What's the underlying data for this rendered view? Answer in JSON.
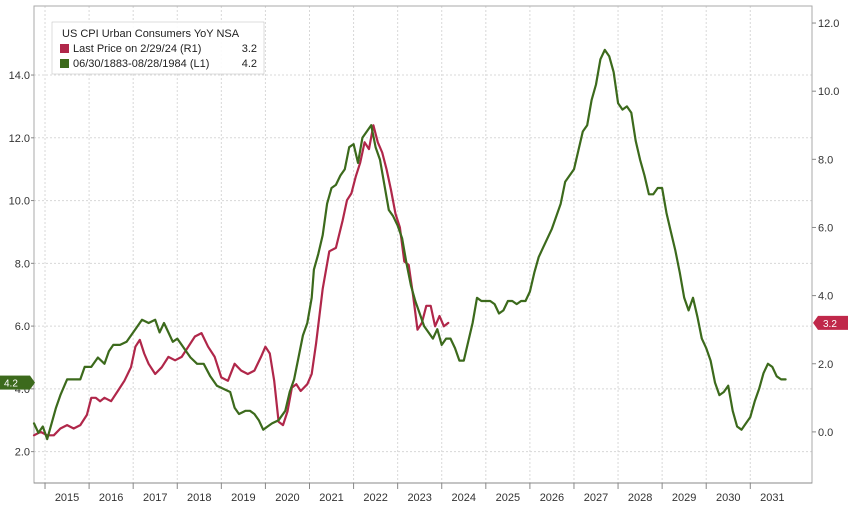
{
  "chart_data": {
    "type": "line",
    "legend": {
      "title": "US CPI Urban Consumers YoY NSA",
      "entries": [
        {
          "label": "Last Price on 2/29/24  (R1)",
          "value": "3.2",
          "color": "#b0274a"
        },
        {
          "label": "06/30/1883-08/28/1984  (L1)",
          "value": "4.2",
          "color": "#3c6a1c"
        }
      ]
    },
    "x_axis": {
      "tick_labels": [
        "2015",
        "2016",
        "2017",
        "2018",
        "2019",
        "2020",
        "2021",
        "2022",
        "2023",
        "2024",
        "2025",
        "2026",
        "2027",
        "2028",
        "2029",
        "2030",
        "2031"
      ],
      "range": [
        2014.75,
        2032.4
      ]
    },
    "y_left": {
      "tick_labels": [
        "2.0",
        "4.0",
        "6.0",
        "8.0",
        "10.0",
        "12.0",
        "14.0"
      ],
      "ylim": [
        1.0,
        16.2
      ]
    },
    "y_right": {
      "tick_labels": [
        "0.0",
        "2.0",
        "4.0",
        "6.0",
        "8.0",
        "10.0",
        "12.0"
      ],
      "ylim": [
        -1.5,
        12.5
      ]
    },
    "badges": {
      "left": {
        "text": "4.2",
        "value": 4.2,
        "axis": "left",
        "color": "#3c6a1c"
      },
      "right": {
        "text": "3.2",
        "value": 3.2,
        "axis": "right",
        "color": "#c0284a"
      }
    },
    "grid": true,
    "series": [
      {
        "axis": "right",
        "color": "#b0274a",
        "points": [
          [
            2014.75,
            -0.1
          ],
          [
            2014.9,
            0.0
          ],
          [
            2015.05,
            -0.1
          ],
          [
            2015.2,
            -0.1
          ],
          [
            2015.35,
            0.1
          ],
          [
            2015.5,
            0.2
          ],
          [
            2015.65,
            0.1
          ],
          [
            2015.8,
            0.2
          ],
          [
            2015.95,
            0.5
          ],
          [
            2016.05,
            1.0
          ],
          [
            2016.15,
            1.0
          ],
          [
            2016.25,
            0.9
          ],
          [
            2016.35,
            1.0
          ],
          [
            2016.5,
            0.9
          ],
          [
            2016.65,
            1.2
          ],
          [
            2016.8,
            1.5
          ],
          [
            2016.95,
            1.9
          ],
          [
            2017.05,
            2.5
          ],
          [
            2017.15,
            2.7
          ],
          [
            2017.25,
            2.3
          ],
          [
            2017.35,
            2.0
          ],
          [
            2017.5,
            1.7
          ],
          [
            2017.65,
            1.9
          ],
          [
            2017.8,
            2.2
          ],
          [
            2017.95,
            2.1
          ],
          [
            2018.1,
            2.2
          ],
          [
            2018.25,
            2.5
          ],
          [
            2018.4,
            2.8
          ],
          [
            2018.55,
            2.9
          ],
          [
            2018.7,
            2.5
          ],
          [
            2018.85,
            2.2
          ],
          [
            2019.0,
            1.6
          ],
          [
            2019.15,
            1.5
          ],
          [
            2019.3,
            2.0
          ],
          [
            2019.45,
            1.8
          ],
          [
            2019.6,
            1.7
          ],
          [
            2019.75,
            1.8
          ],
          [
            2019.9,
            2.2
          ],
          [
            2020.0,
            2.5
          ],
          [
            2020.1,
            2.3
          ],
          [
            2020.2,
            1.5
          ],
          [
            2020.3,
            0.3
          ],
          [
            2020.4,
            0.2
          ],
          [
            2020.5,
            0.6
          ],
          [
            2020.6,
            1.3
          ],
          [
            2020.7,
            1.4
          ],
          [
            2020.8,
            1.2
          ],
          [
            2020.95,
            1.4
          ],
          [
            2021.05,
            1.7
          ],
          [
            2021.15,
            2.6
          ],
          [
            2021.3,
            4.2
          ],
          [
            2021.45,
            5.3
          ],
          [
            2021.6,
            5.4
          ],
          [
            2021.75,
            6.2
          ],
          [
            2021.85,
            6.8
          ],
          [
            2021.95,
            7.0
          ],
          [
            2022.05,
            7.5
          ],
          [
            2022.15,
            7.9
          ],
          [
            2022.25,
            8.5
          ],
          [
            2022.35,
            8.3
          ],
          [
            2022.45,
            9.0
          ],
          [
            2022.55,
            8.5
          ],
          [
            2022.65,
            8.2
          ],
          [
            2022.75,
            7.7
          ],
          [
            2022.85,
            7.1
          ],
          [
            2022.95,
            6.4
          ],
          [
            2023.05,
            6.0
          ],
          [
            2023.15,
            5.0
          ],
          [
            2023.25,
            4.9
          ],
          [
            2023.35,
            4.0
          ],
          [
            2023.45,
            3.0
          ],
          [
            2023.55,
            3.2
          ],
          [
            2023.65,
            3.7
          ],
          [
            2023.75,
            3.7
          ],
          [
            2023.85,
            3.1
          ],
          [
            2023.95,
            3.4
          ],
          [
            2024.05,
            3.1
          ],
          [
            2024.15,
            3.2
          ]
        ]
      },
      {
        "axis": "left",
        "color": "#3c6a1c",
        "points": [
          [
            2014.75,
            2.9
          ],
          [
            2014.85,
            2.6
          ],
          [
            2014.95,
            2.8
          ],
          [
            2015.05,
            2.4
          ],
          [
            2015.15,
            2.9
          ],
          [
            2015.25,
            3.4
          ],
          [
            2015.35,
            3.8
          ],
          [
            2015.5,
            4.3
          ],
          [
            2015.65,
            4.3
          ],
          [
            2015.8,
            4.3
          ],
          [
            2015.9,
            4.7
          ],
          [
            2016.05,
            4.7
          ],
          [
            2016.2,
            5.0
          ],
          [
            2016.35,
            4.8
          ],
          [
            2016.45,
            5.2
          ],
          [
            2016.55,
            5.4
          ],
          [
            2016.7,
            5.4
          ],
          [
            2016.85,
            5.5
          ],
          [
            2016.95,
            5.7
          ],
          [
            2017.05,
            5.9
          ],
          [
            2017.2,
            6.2
          ],
          [
            2017.35,
            6.1
          ],
          [
            2017.5,
            6.2
          ],
          [
            2017.6,
            5.8
          ],
          [
            2017.7,
            6.1
          ],
          [
            2017.8,
            5.8
          ],
          [
            2017.9,
            5.5
          ],
          [
            2018.0,
            5.6
          ],
          [
            2018.1,
            5.4
          ],
          [
            2018.2,
            5.2
          ],
          [
            2018.3,
            5.0
          ],
          [
            2018.45,
            4.8
          ],
          [
            2018.6,
            4.8
          ],
          [
            2018.75,
            4.4
          ],
          [
            2018.9,
            4.1
          ],
          [
            2019.05,
            4.0
          ],
          [
            2019.2,
            3.9
          ],
          [
            2019.3,
            3.4
          ],
          [
            2019.4,
            3.2
          ],
          [
            2019.55,
            3.3
          ],
          [
            2019.65,
            3.3
          ],
          [
            2019.75,
            3.2
          ],
          [
            2019.85,
            3.0
          ],
          [
            2019.95,
            2.7
          ],
          [
            2020.05,
            2.8
          ],
          [
            2020.15,
            2.9
          ],
          [
            2020.3,
            3.0
          ],
          [
            2020.45,
            3.3
          ],
          [
            2020.55,
            3.9
          ],
          [
            2020.65,
            4.3
          ],
          [
            2020.75,
            5.0
          ],
          [
            2020.85,
            5.7
          ],
          [
            2020.95,
            6.1
          ],
          [
            2021.05,
            6.9
          ],
          [
            2021.1,
            7.8
          ],
          [
            2021.2,
            8.3
          ],
          [
            2021.3,
            8.9
          ],
          [
            2021.4,
            9.9
          ],
          [
            2021.5,
            10.4
          ],
          [
            2021.6,
            10.5
          ],
          [
            2021.7,
            10.8
          ],
          [
            2021.8,
            11.0
          ],
          [
            2021.9,
            11.7
          ],
          [
            2022.0,
            11.8
          ],
          [
            2022.1,
            11.2
          ],
          [
            2022.2,
            12.0
          ],
          [
            2022.3,
            12.2
          ],
          [
            2022.4,
            12.4
          ],
          [
            2022.5,
            11.7
          ],
          [
            2022.6,
            11.3
          ],
          [
            2022.7,
            10.5
          ],
          [
            2022.8,
            9.7
          ],
          [
            2022.9,
            9.5
          ],
          [
            2023.0,
            9.2
          ],
          [
            2023.1,
            8.8
          ],
          [
            2023.2,
            8.0
          ],
          [
            2023.3,
            7.3
          ],
          [
            2023.4,
            6.8
          ],
          [
            2023.5,
            6.4
          ],
          [
            2023.6,
            6.0
          ],
          [
            2023.7,
            5.8
          ],
          [
            2023.8,
            5.6
          ],
          [
            2023.9,
            5.9
          ],
          [
            2024.0,
            5.4
          ],
          [
            2024.1,
            5.6
          ],
          [
            2024.2,
            5.6
          ],
          [
            2024.3,
            5.3
          ],
          [
            2024.4,
            4.9
          ],
          [
            2024.5,
            4.9
          ],
          [
            2024.6,
            5.5
          ],
          [
            2024.7,
            6.1
          ],
          [
            2024.8,
            6.9
          ],
          [
            2024.9,
            6.8
          ],
          [
            2025.0,
            6.8
          ],
          [
            2025.1,
            6.8
          ],
          [
            2025.2,
            6.7
          ],
          [
            2025.3,
            6.4
          ],
          [
            2025.4,
            6.5
          ],
          [
            2025.5,
            6.8
          ],
          [
            2025.6,
            6.8
          ],
          [
            2025.7,
            6.7
          ],
          [
            2025.8,
            6.8
          ],
          [
            2025.9,
            6.8
          ],
          [
            2026.0,
            7.1
          ],
          [
            2026.1,
            7.7
          ],
          [
            2026.2,
            8.2
          ],
          [
            2026.3,
            8.5
          ],
          [
            2026.4,
            8.8
          ],
          [
            2026.5,
            9.1
          ],
          [
            2026.6,
            9.5
          ],
          [
            2026.7,
            9.9
          ],
          [
            2026.8,
            10.6
          ],
          [
            2026.9,
            10.8
          ],
          [
            2027.0,
            11.0
          ],
          [
            2027.1,
            11.6
          ],
          [
            2027.2,
            12.2
          ],
          [
            2027.3,
            12.4
          ],
          [
            2027.4,
            13.2
          ],
          [
            2027.5,
            13.7
          ],
          [
            2027.6,
            14.5
          ],
          [
            2027.7,
            14.8
          ],
          [
            2027.8,
            14.6
          ],
          [
            2027.9,
            14.1
          ],
          [
            2028.0,
            13.1
          ],
          [
            2028.1,
            12.9
          ],
          [
            2028.2,
            13.0
          ],
          [
            2028.3,
            12.8
          ],
          [
            2028.4,
            11.9
          ],
          [
            2028.5,
            11.3
          ],
          [
            2028.6,
            10.8
          ],
          [
            2028.7,
            10.2
          ],
          [
            2028.8,
            10.2
          ],
          [
            2028.9,
            10.4
          ],
          [
            2029.0,
            10.4
          ],
          [
            2029.1,
            9.6
          ],
          [
            2029.2,
            9.0
          ],
          [
            2029.3,
            8.4
          ],
          [
            2029.4,
            7.7
          ],
          [
            2029.5,
            6.9
          ],
          [
            2029.6,
            6.5
          ],
          [
            2029.7,
            6.9
          ],
          [
            2029.8,
            6.3
          ],
          [
            2029.9,
            5.6
          ],
          [
            2030.0,
            5.3
          ],
          [
            2030.1,
            4.9
          ],
          [
            2030.2,
            4.2
          ],
          [
            2030.3,
            3.8
          ],
          [
            2030.4,
            3.9
          ],
          [
            2030.5,
            4.1
          ],
          [
            2030.6,
            3.3
          ],
          [
            2030.7,
            2.8
          ],
          [
            2030.8,
            2.7
          ],
          [
            2030.9,
            2.9
          ],
          [
            2031.0,
            3.1
          ],
          [
            2031.1,
            3.6
          ],
          [
            2031.2,
            4.0
          ],
          [
            2031.3,
            4.5
          ],
          [
            2031.4,
            4.8
          ],
          [
            2031.5,
            4.7
          ],
          [
            2031.6,
            4.4
          ],
          [
            2031.7,
            4.3
          ],
          [
            2031.8,
            4.3
          ]
        ]
      }
    ]
  }
}
